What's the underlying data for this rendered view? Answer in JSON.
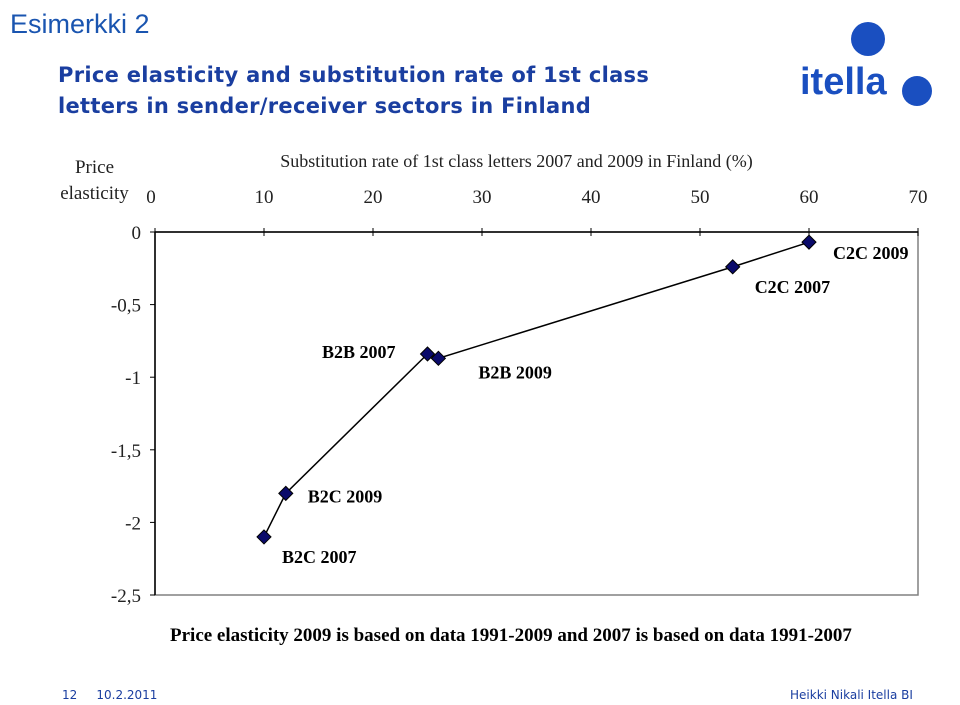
{
  "slide": {
    "title": "Esimerkki 2",
    "heading_line1": "Price elasticity and substitution rate of 1st class",
    "heading_line2": "letters in sender/receiver sectors in Finland",
    "logo_text": "itella",
    "note": "Price elasticity 2009 is based on data 1991-2009 and 2007 is based on data 1991-2007",
    "footer_page": "12",
    "footer_date": "10.2.2011",
    "footer_author": "Heikki Nikali Itella BI"
  },
  "colors": {
    "brand_blue": "#1a4fc0",
    "heading_blue": "#1a3ea0",
    "marker_fill": "#0a0a6a",
    "line": "#000000",
    "plot_border": "#808080"
  },
  "chart_data": {
    "type": "scatter",
    "title": "Substitution rate of 1st class letters 2007 and 2009 in Finland (%)",
    "xlabel": "",
    "ylabel": "Price elasticity",
    "xlim": [
      0,
      70
    ],
    "ylim": [
      -2.5,
      0
    ],
    "x_axis_position": "top",
    "x_ticks": [
      "0",
      "10",
      "20",
      "30",
      "40",
      "50",
      "60",
      "70"
    ],
    "y_ticks": [
      "0",
      "-0,5",
      "-1",
      "-1,5",
      "-2",
      "-2,5"
    ],
    "grid": false,
    "points": [
      {
        "label": "B2C 2007",
        "x": 10,
        "y": -2.1
      },
      {
        "label": "B2C 2009",
        "x": 12,
        "y": -1.8
      },
      {
        "label": "B2B 2007",
        "x": 25,
        "y": -0.84
      },
      {
        "label": "B2B 2009",
        "x": 26,
        "y": -0.87
      },
      {
        "label": "C2C 2007",
        "x": 53,
        "y": -0.24
      },
      {
        "label": "C2C 2009",
        "x": 60,
        "y": -0.07
      }
    ]
  }
}
